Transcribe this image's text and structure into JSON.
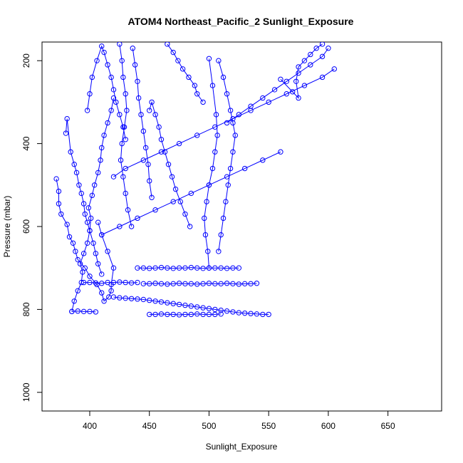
{
  "chart_data": {
    "type": "scatter",
    "title": "ATOM4 Northeast_Pacific_2 Sunlight_Exposure",
    "xlabel": "Sunlight_Exposure",
    "ylabel": "Pressure (mbar)",
    "xlim": [
      360,
      695
    ],
    "ylim": [
      1045,
      155
    ],
    "y_reversed": true,
    "x_ticks": [
      400,
      450,
      500,
      550,
      600,
      650
    ],
    "y_ticks": [
      200,
      400,
      600,
      800,
      1000
    ],
    "grid": false,
    "color": "#0000ff",
    "series": [
      {
        "x": [
          372,
          374,
          374,
          376,
          381,
          383,
          386,
          388,
          390,
          396,
          400,
          406,
          410,
          412,
          416,
          418,
          418,
          420,
          415,
          410,
          407
        ],
        "y": [
          485,
          515,
          545,
          570,
          595,
          625,
          640,
          660,
          680,
          700,
          720,
          740,
          760,
          780,
          770,
          755,
          740,
          700,
          660,
          620,
          590
        ]
      },
      {
        "x": [
          385,
          387,
          390,
          393,
          394,
          392,
          395,
          398,
          400,
          401,
          399,
          402,
          404,
          407,
          409,
          410,
          412,
          415,
          418,
          420
        ],
        "y": [
          805,
          780,
          755,
          735,
          710,
          690,
          665,
          640,
          610,
          580,
          555,
          525,
          500,
          470,
          440,
          410,
          380,
          350,
          320,
          290
        ]
      },
      {
        "x": [
          380,
          381,
          384,
          387,
          389,
          391,
          393,
          395,
          396,
          398,
          400,
          403,
          405,
          407,
          410
        ],
        "y": [
          375,
          340,
          420,
          450,
          470,
          500,
          520,
          545,
          570,
          590,
          610,
          640,
          665,
          690,
          715
        ]
      },
      {
        "x": [
          398,
          400,
          402,
          406,
          410,
          412,
          415,
          418,
          420,
          422,
          425,
          428,
          430
        ],
        "y": [
          320,
          280,
          240,
          200,
          165,
          180,
          210,
          240,
          270,
          300,
          330,
          360,
          390
        ]
      },
      {
        "x": [
          425,
          427,
          428,
          430,
          431,
          429,
          427,
          426,
          428,
          430,
          432,
          435
        ],
        "y": [
          160,
          200,
          240,
          280,
          320,
          360,
          400,
          440,
          480,
          520,
          560,
          600
        ]
      },
      {
        "x": [
          436,
          438,
          440,
          441,
          443,
          445,
          447,
          449,
          450,
          452
        ],
        "y": [
          170,
          210,
          250,
          290,
          330,
          370,
          410,
          450,
          490,
          530
        ]
      },
      {
        "x": [
          450,
          452,
          455,
          458,
          460,
          463,
          466,
          469,
          472,
          476,
          480,
          484
        ],
        "y": [
          320,
          300,
          330,
          360,
          390,
          420,
          450,
          480,
          510,
          540,
          570,
          600
        ]
      },
      {
        "x": [
          465,
          470,
          474,
          478,
          483,
          488,
          490,
          495
        ],
        "y": [
          160,
          180,
          200,
          220,
          240,
          260,
          280,
          300
        ]
      },
      {
        "x": [
          500,
          503,
          506,
          507,
          505,
          503,
          500,
          498,
          496,
          497,
          499,
          500
        ],
        "y": [
          195,
          260,
          330,
          380,
          420,
          460,
          500,
          540,
          580,
          620,
          660,
          700
        ]
      },
      {
        "x": [
          508,
          512,
          515,
          518,
          520,
          522,
          520,
          518,
          516,
          514,
          512,
          510,
          508
        ],
        "y": [
          200,
          240,
          280,
          320,
          350,
          380,
          420,
          460,
          500,
          540,
          580,
          620,
          660
        ]
      },
      {
        "x": [
          515,
          525,
          535,
          545,
          555,
          565,
          575,
          585,
          595,
          600
        ],
        "y": [
          350,
          330,
          310,
          290,
          270,
          250,
          230,
          210,
          190,
          170
        ]
      },
      {
        "x": [
          560,
          570,
          575,
          573,
          575,
          580,
          585,
          590,
          595
        ],
        "y": [
          245,
          275,
          290,
          250,
          215,
          200,
          185,
          170,
          160
        ]
      },
      {
        "x": [
          395,
          400,
          405,
          410,
          415,
          420,
          425,
          430,
          435,
          440
        ],
        "y": [
          735,
          735,
          736,
          737,
          735,
          735,
          734,
          735,
          736,
          735
        ]
      },
      {
        "x": [
          420,
          425,
          430,
          435,
          440,
          445,
          450,
          455,
          460,
          465,
          470,
          475,
          480,
          485,
          490,
          495,
          500,
          505,
          510,
          515,
          520,
          525,
          530,
          535,
          540,
          545,
          550
        ],
        "y": [
          770,
          772,
          773,
          774,
          775,
          776,
          778,
          780,
          782,
          784,
          786,
          788,
          790,
          792,
          794,
          796,
          798,
          800,
          802,
          804,
          806,
          808,
          809,
          810,
          811,
          812,
          812
        ]
      },
      {
        "x": [
          440,
          445,
          450,
          455,
          460,
          465,
          470,
          475,
          480,
          485,
          490,
          495,
          500,
          505,
          510,
          515,
          520,
          525
        ],
        "y": [
          700,
          700,
          701,
          700,
          699,
          700,
          701,
          700,
          700,
          699,
          700,
          701,
          700,
          700,
          700,
          701,
          700,
          700
        ]
      },
      {
        "x": [
          445,
          450,
          455,
          460,
          465,
          470,
          475,
          480,
          485,
          490,
          495,
          500,
          505,
          510,
          515,
          520,
          525,
          530,
          535,
          540
        ],
        "y": [
          738,
          738,
          737,
          738,
          739,
          738,
          737,
          738,
          738,
          739,
          738,
          737,
          738,
          738,
          737,
          738,
          739,
          738,
          738,
          737
        ]
      },
      {
        "x": [
          450,
          455,
          460,
          465,
          470,
          475,
          480,
          485,
          490,
          495,
          500,
          505,
          510
        ],
        "y": [
          812,
          812,
          811,
          812,
          812,
          813,
          812,
          812,
          811,
          812,
          812,
          812,
          811
        ]
      },
      {
        "x": [
          385,
          390,
          395,
          400,
          405
        ],
        "y": [
          805,
          804,
          805,
          805,
          806
        ]
      },
      {
        "x": [
          420,
          430,
          445,
          460,
          475,
          490,
          505,
          520,
          535,
          550,
          565,
          580,
          595,
          605
        ],
        "y": [
          480,
          460,
          440,
          420,
          400,
          380,
          360,
          340,
          320,
          300,
          280,
          260,
          240,
          220
        ]
      },
      {
        "x": [
          410,
          425,
          440,
          455,
          470,
          485,
          500,
          515,
          530,
          545,
          560
        ],
        "y": [
          620,
          600,
          580,
          560,
          540,
          520,
          500,
          480,
          460,
          440,
          420
        ]
      }
    ]
  }
}
